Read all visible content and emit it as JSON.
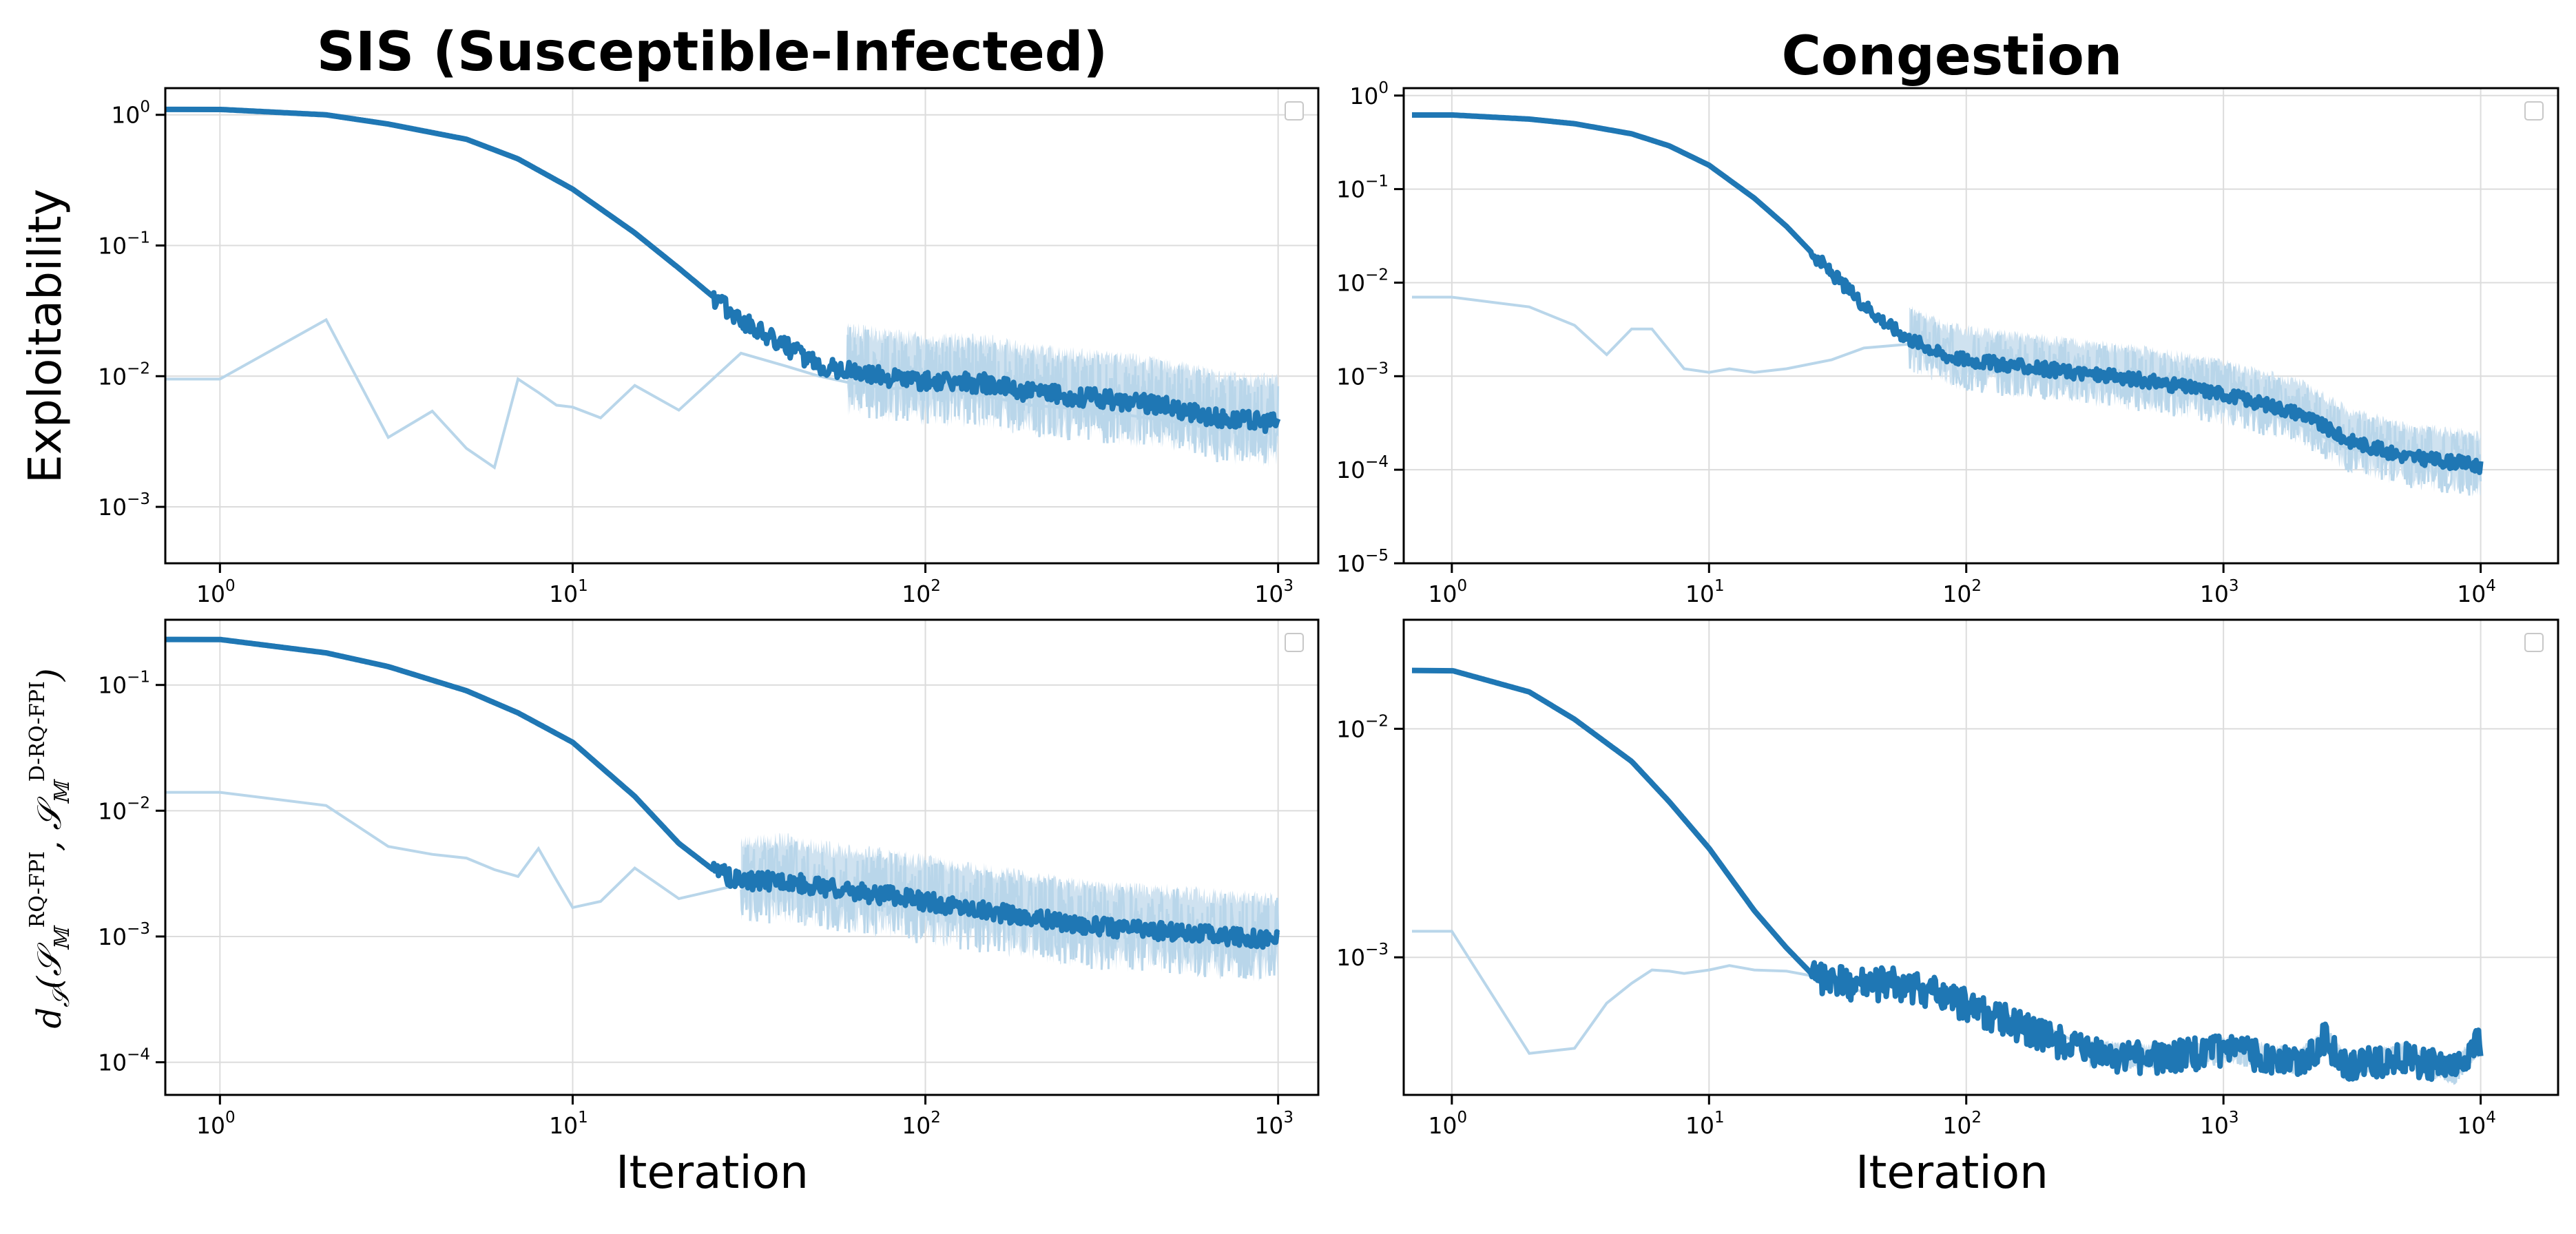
{
  "colors": {
    "raw": "#b9d6ea",
    "smooth": "#1f77b4",
    "band": "#cfe2f0",
    "grid": "#dcdcdc"
  },
  "y_labels": {
    "exploitability": "Exploitability",
    "distance": "d𝒮(𝒮𝕄RQ-FPI, 𝒮𝕄D-RQ-FPI)",
    "distance_parts": {
      "base": "d",
      "sub1": "𝒮",
      "s": "𝒮",
      "m": "𝕄",
      "sup_a": "RQ-FPI",
      "sup_b": "D-RQ-FPI"
    }
  },
  "chart_data": [
    {
      "id": "sis-exploitability",
      "type": "line",
      "title": "SIS (Susceptible-Infected)",
      "xlabel": "",
      "ylabel": "Exploitability",
      "xscale": "log",
      "yscale": "log",
      "xlim": [
        0.7,
        1300
      ],
      "ylim": [
        0.00037,
        1.6
      ],
      "xticks": [
        {
          "base": "10",
          "exp": "0",
          "v": 1
        },
        {
          "base": "10",
          "exp": "1",
          "v": 10
        },
        {
          "base": "10",
          "exp": "2",
          "v": 100
        },
        {
          "base": "10",
          "exp": "3",
          "v": 1000
        }
      ],
      "yticks": [
        {
          "base": "10",
          "exp": "−3",
          "v": 0.001
        },
        {
          "base": "10",
          "exp": "−2",
          "v": 0.01
        },
        {
          "base": "10",
          "exp": "−1",
          "v": 0.1
        },
        {
          "base": "10",
          "exp": "0",
          "v": 1
        }
      ],
      "grid": true,
      "legend": "top-right (empty)",
      "raw": {
        "x": [
          0,
          1,
          2,
          3,
          4,
          5,
          6,
          7,
          8,
          9,
          10,
          12,
          15,
          20,
          30,
          40,
          50,
          60,
          80,
          100,
          150,
          200,
          300,
          500,
          700,
          1000
        ],
        "y": [
          0.0095,
          0.0095,
          0.027,
          0.0034,
          0.0054,
          0.0028,
          0.002,
          0.0095,
          0.0075,
          0.006,
          0.0058,
          0.0048,
          0.0085,
          0.0055,
          0.015,
          0.012,
          0.01,
          0.009,
          0.008,
          0.0085,
          0.007,
          0.006,
          0.0055,
          0.0045,
          0.004,
          0.0045
        ]
      },
      "smoothed": {
        "x": [
          0,
          1,
          2,
          3,
          5,
          7,
          10,
          15,
          20,
          30,
          40,
          50,
          60,
          80,
          100,
          150,
          200,
          300,
          500,
          700,
          1000
        ],
        "y": [
          1.1,
          1.1,
          1.0,
          0.85,
          0.65,
          0.46,
          0.27,
          0.125,
          0.067,
          0.027,
          0.017,
          0.012,
          0.011,
          0.0098,
          0.0092,
          0.0088,
          0.0075,
          0.0068,
          0.0058,
          0.0047,
          0.0044
        ]
      },
      "band": {
        "from": 60,
        "low_factor": 0.45,
        "high_factor": 2.4
      }
    },
    {
      "id": "congestion-exploitability",
      "type": "line",
      "title": "Congestion",
      "xlabel": "",
      "ylabel": "",
      "xscale": "log",
      "yscale": "log",
      "xlim": [
        0.65,
        20000
      ],
      "ylim": [
        1e-05,
        1.2
      ],
      "xticks": [
        {
          "base": "10",
          "exp": "0",
          "v": 1
        },
        {
          "base": "10",
          "exp": "1",
          "v": 10
        },
        {
          "base": "10",
          "exp": "2",
          "v": 100
        },
        {
          "base": "10",
          "exp": "3",
          "v": 1000
        },
        {
          "base": "10",
          "exp": "4",
          "v": 10000
        }
      ],
      "yticks": [
        {
          "base": "10",
          "exp": "−5",
          "v": 1e-05
        },
        {
          "base": "10",
          "exp": "−4",
          "v": 0.0001
        },
        {
          "base": "10",
          "exp": "−3",
          "v": 0.001
        },
        {
          "base": "10",
          "exp": "−2",
          "v": 0.01
        },
        {
          "base": "10",
          "exp": "−1",
          "v": 0.1
        },
        {
          "base": "10",
          "exp": "0",
          "v": 1
        }
      ],
      "grid": true,
      "legend": "top-right (empty)",
      "raw": {
        "x": [
          0,
          1,
          2,
          3,
          4,
          5,
          6,
          8,
          10,
          12,
          15,
          20,
          30,
          40,
          60,
          80,
          100,
          150,
          200,
          300,
          500,
          1000,
          2000,
          3000,
          5000,
          8000,
          10000
        ],
        "y": [
          0.007,
          0.007,
          0.0055,
          0.0035,
          0.0017,
          0.0032,
          0.0032,
          0.0012,
          0.0011,
          0.0012,
          0.0011,
          0.0012,
          0.0015,
          0.002,
          0.0022,
          0.0016,
          0.0014,
          0.0012,
          0.0011,
          0.0011,
          0.0009,
          0.0006,
          0.0003,
          0.00017,
          0.00013,
          0.00012,
          0.00011
        ]
      },
      "smoothed": {
        "x": [
          0,
          1,
          2,
          3,
          5,
          7,
          10,
          15,
          20,
          30,
          40,
          50,
          60,
          70,
          80,
          100,
          150,
          200,
          300,
          500,
          1000,
          2000,
          3000,
          5000,
          8000,
          10000
        ],
        "y": [
          0.62,
          0.62,
          0.56,
          0.5,
          0.39,
          0.29,
          0.18,
          0.08,
          0.04,
          0.0125,
          0.0058,
          0.0035,
          0.0025,
          0.0021,
          0.0017,
          0.0015,
          0.0013,
          0.0012,
          0.00105,
          0.0009,
          0.00065,
          0.0004,
          0.00021,
          0.00014,
          0.00012,
          0.00011
        ]
      },
      "band": {
        "from": 60,
        "low_factor": 0.45,
        "high_factor": 2.4
      }
    },
    {
      "id": "sis-distance",
      "type": "line",
      "title": "",
      "xlabel": "Iteration",
      "ylabel": "d𝒮(𝒮𝕄RQ-FPI, 𝒮𝕄D-RQ-FPI)",
      "xscale": "log",
      "yscale": "log",
      "xlim": [
        0.7,
        1300
      ],
      "ylim": [
        5.5e-05,
        0.33
      ],
      "xticks": [
        {
          "base": "10",
          "exp": "0",
          "v": 1
        },
        {
          "base": "10",
          "exp": "1",
          "v": 10
        },
        {
          "base": "10",
          "exp": "2",
          "v": 100
        },
        {
          "base": "10",
          "exp": "3",
          "v": 1000
        }
      ],
      "yticks": [
        {
          "base": "10",
          "exp": "−4",
          "v": 0.0001
        },
        {
          "base": "10",
          "exp": "−3",
          "v": 0.001
        },
        {
          "base": "10",
          "exp": "−2",
          "v": 0.01
        },
        {
          "base": "10",
          "exp": "−1",
          "v": 0.1
        }
      ],
      "grid": true,
      "legend": "top-right (empty)",
      "raw": {
        "x": [
          0,
          1,
          2,
          3,
          4,
          5,
          6,
          7,
          8,
          9,
          10,
          12,
          15,
          20,
          30,
          40,
          50,
          60,
          80,
          100,
          150,
          200,
          300,
          500,
          700,
          1000
        ],
        "y": [
          0.014,
          0.014,
          0.011,
          0.0052,
          0.0045,
          0.0042,
          0.0034,
          0.003,
          0.005,
          0.0028,
          0.0017,
          0.0019,
          0.0035,
          0.002,
          0.0026,
          0.0028,
          0.0025,
          0.0022,
          0.002,
          0.0019,
          0.0016,
          0.0014,
          0.0013,
          0.0011,
          0.001,
          0.0009
        ]
      },
      "smoothed": {
        "x": [
          0,
          1,
          2,
          3,
          5,
          7,
          10,
          15,
          20,
          25,
          30,
          40,
          50,
          60,
          80,
          100,
          150,
          200,
          300,
          500,
          700,
          1000
        ],
        "y": [
          0.23,
          0.23,
          0.18,
          0.14,
          0.09,
          0.06,
          0.035,
          0.013,
          0.0055,
          0.0034,
          0.0027,
          0.0028,
          0.0025,
          0.0023,
          0.0021,
          0.0019,
          0.0016,
          0.0014,
          0.0012,
          0.0011,
          0.001,
          0.00095
        ]
      },
      "band": {
        "from": 30,
        "low_factor": 0.45,
        "high_factor": 2.4
      }
    },
    {
      "id": "congestion-distance",
      "type": "line",
      "title": "",
      "xlabel": "Iteration",
      "ylabel": "",
      "xscale": "log",
      "yscale": "log",
      "xlim": [
        0.65,
        20000
      ],
      "ylim": [
        0.00025,
        0.03
      ],
      "xticks": [
        {
          "base": "10",
          "exp": "0",
          "v": 1
        },
        {
          "base": "10",
          "exp": "1",
          "v": 10
        },
        {
          "base": "10",
          "exp": "2",
          "v": 100
        },
        {
          "base": "10",
          "exp": "3",
          "v": 1000
        },
        {
          "base": "10",
          "exp": "4",
          "v": 10000
        }
      ],
      "yticks": [
        {
          "base": "10",
          "exp": "−3",
          "v": 0.001
        },
        {
          "base": "10",
          "exp": "−2",
          "v": 0.01
        }
      ],
      "grid": true,
      "legend": "top-right (empty)",
      "raw": {
        "x": [
          0,
          1,
          2,
          3,
          4,
          5,
          6,
          7,
          8,
          10,
          12,
          15,
          20,
          30,
          40,
          50,
          60,
          80,
          100,
          150,
          200,
          300
        ],
        "y": [
          0.0013,
          0.0013,
          0.00038,
          0.0004,
          0.00063,
          0.00077,
          0.00088,
          0.00087,
          0.00085,
          0.00088,
          0.00092,
          0.00088,
          0.00087,
          0.0008,
          0.0007,
          0.00075,
          0.00074,
          0.00068,
          0.00062,
          0.00055,
          0.0005,
          0.0004
        ]
      },
      "smoothed": {
        "x": [
          0,
          1,
          2,
          3,
          5,
          7,
          10,
          15,
          20,
          25,
          30,
          40,
          50,
          60,
          80,
          100,
          150,
          200,
          300,
          500,
          800,
          1000,
          2000,
          2500,
          3000,
          4000,
          5000,
          6000,
          8000,
          10000
        ],
        "y": [
          0.018,
          0.018,
          0.0145,
          0.011,
          0.0072,
          0.0048,
          0.003,
          0.0016,
          0.0011,
          0.00085,
          0.00078,
          0.00075,
          0.00077,
          0.00075,
          0.00068,
          0.00062,
          0.00052,
          0.00045,
          0.00038,
          0.00036,
          0.00038,
          0.00039,
          0.00035,
          0.00044,
          0.00033,
          0.00035,
          0.00037,
          0.00034,
          0.00032,
          0.00043
        ]
      },
      "band": {
        "from": 300,
        "low_factor": 0.88,
        "high_factor": 1.16
      }
    }
  ]
}
